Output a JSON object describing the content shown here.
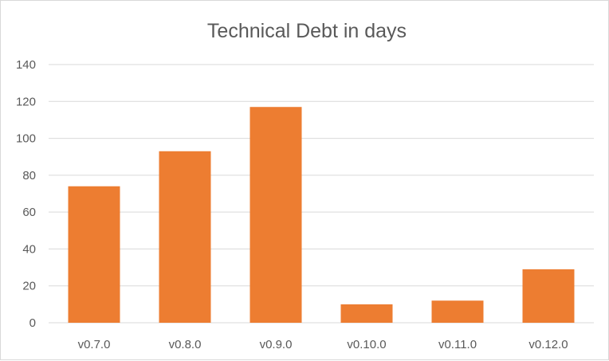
{
  "chart_data": {
    "type": "bar",
    "title": "Technical Debt in days",
    "xlabel": "",
    "ylabel": "",
    "categories": [
      "v0.7.0",
      "v0.8.0",
      "v0.9.0",
      "v0.10.0",
      "v0.11.0",
      "v0.12.0"
    ],
    "values": [
      74,
      93,
      117,
      10,
      12,
      29
    ],
    "ylim": [
      0,
      140
    ],
    "yticks": [
      "0",
      "20",
      "40",
      "60",
      "80",
      "100",
      "120",
      "140"
    ],
    "grid": true,
    "legend": "none",
    "colors": {
      "bar": "#ED7D31",
      "grid": "#D9D9D9",
      "text": "#595959"
    }
  }
}
